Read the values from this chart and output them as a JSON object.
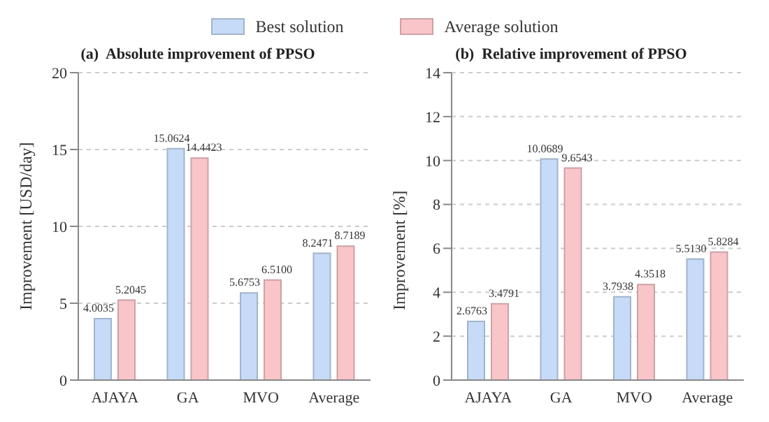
{
  "chart_data": [
    {
      "type": "bar",
      "title": "(a)  Absolute improvement of PPSO",
      "ylabel": "Improvement [USD/day]",
      "categories": [
        "AJAYA",
        "GA",
        "MVO",
        "Average"
      ],
      "series": [
        {
          "name": "Best solution",
          "color": "#c6dbf7",
          "values": [
            4.0035,
            15.0624,
            5.6753,
            8.2471
          ],
          "value_labels": [
            "4.0035",
            "15.0624",
            "5.6753",
            "8.2471"
          ]
        },
        {
          "name": "Average solution",
          "color": "#f9c5c9",
          "values": [
            5.2045,
            14.4423,
            6.51,
            8.7189
          ],
          "value_labels": [
            "5.2045",
            "14.4423",
            "6.5100",
            "8.7189"
          ]
        }
      ],
      "ylim": [
        0,
        20
      ],
      "yticks": [
        0,
        5,
        10,
        15,
        20
      ],
      "grid": "y",
      "legend": "top"
    },
    {
      "type": "bar",
      "title": "(b)  Relative improvement of PPSO",
      "ylabel": "Improvement [%]",
      "categories": [
        "AJAYA",
        "GA",
        "MVO",
        "Average"
      ],
      "series": [
        {
          "color": "#c6dbf7",
          "values": [
            2.6763,
            10.0689,
            3.7938,
            5.513
          ],
          "value_labels": [
            "2.6763",
            "10.0689",
            "3.7938",
            "5.5130"
          ]
        },
        {
          "color": "#f9c5c9",
          "values": [
            3.4791,
            9.6543,
            4.3518,
            5.8284
          ],
          "value_labels": [
            "3.4791",
            "9.6543",
            "4.3518",
            "5.8284"
          ]
        }
      ],
      "ylim": [
        0,
        14
      ],
      "yticks": [
        0,
        2,
        4,
        6,
        8,
        10,
        12,
        14
      ],
      "grid": "y"
    }
  ]
}
